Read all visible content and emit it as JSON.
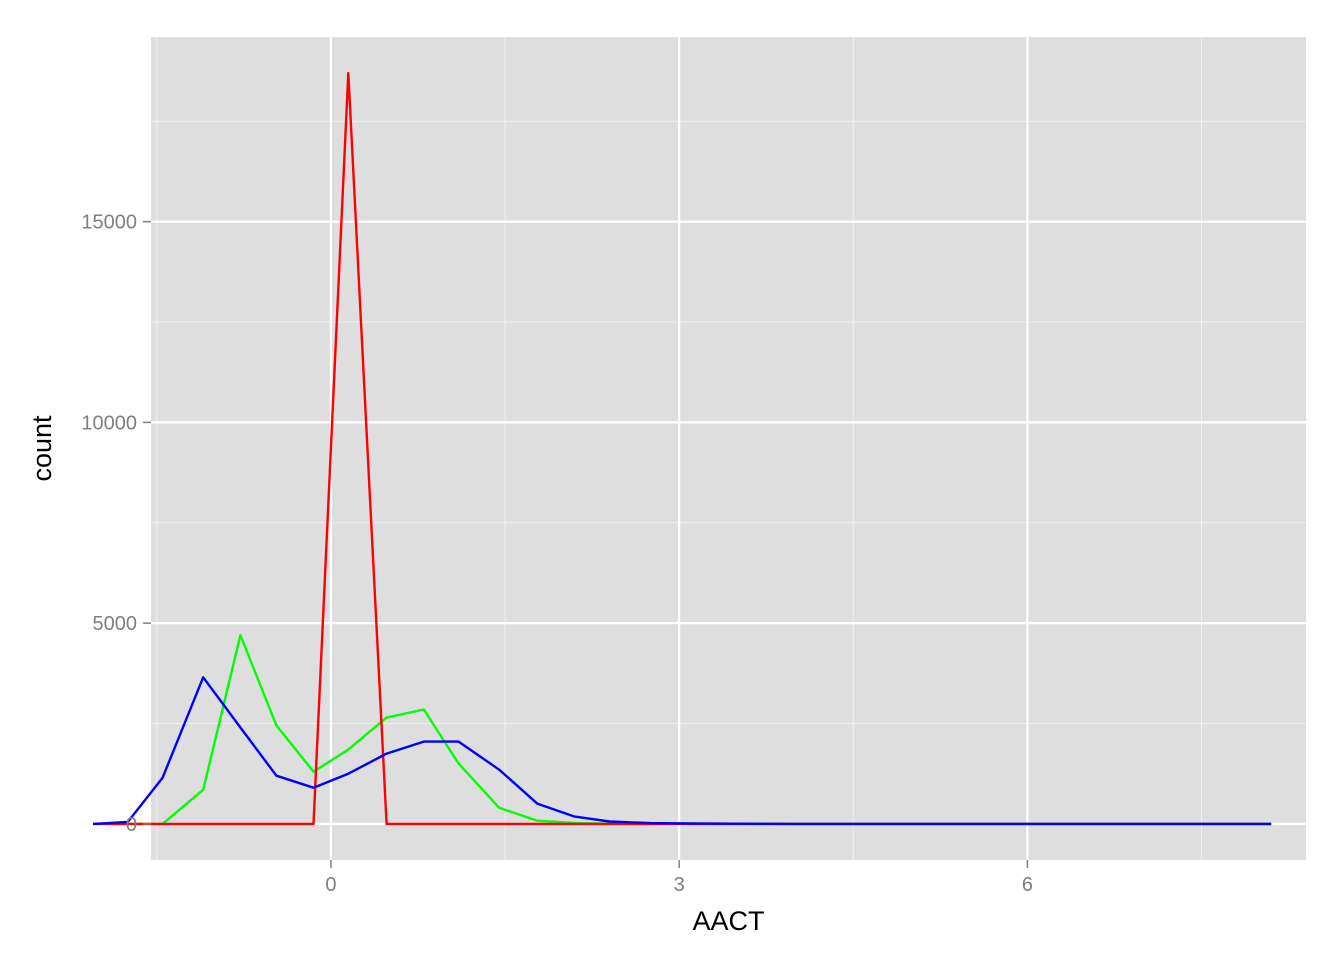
{
  "chart_data": {
    "type": "line",
    "title": "",
    "xlabel": "AACT",
    "ylabel": "count",
    "xlim": [
      -1.55,
      8.4
    ],
    "ylim": [
      -900,
      19600
    ],
    "grid": true,
    "legend": "none",
    "x_ticks": [
      0,
      3,
      6
    ],
    "x_tick_labels": [
      "0",
      "3",
      "6"
    ],
    "x_minor": [
      -1.5,
      1.5,
      4.5,
      7.5
    ],
    "y_ticks": [
      0,
      5000,
      10000,
      15000
    ],
    "y_tick_labels": [
      "0",
      "5000",
      "10000",
      "15000"
    ],
    "y_minor": [
      2500,
      7500,
      12500,
      17500
    ],
    "colors": {
      "panel": "#dedede",
      "grid": "#ffffff",
      "series": [
        "#ff0000",
        "#00ff00",
        "#0000ff"
      ]
    },
    "series": [
      {
        "color": "#ff0000",
        "x": [
          -2.05,
          -1.05,
          -0.15,
          0.15,
          0.48,
          1.0,
          2.0,
          3.0,
          4.0,
          5.0,
          6.0,
          7.0,
          8.1
        ],
        "y": [
          0,
          0,
          0,
          18700,
          0,
          0,
          0,
          0,
          0,
          0,
          0,
          0,
          0
        ]
      },
      {
        "color": "#00ff00",
        "x": [
          -2.05,
          -1.45,
          -1.1,
          -0.78,
          -0.47,
          -0.15,
          0.15,
          0.48,
          0.8,
          1.1,
          1.45,
          1.78,
          2.1,
          2.4,
          2.75,
          3.1,
          4.0,
          5.0,
          6.0,
          7.0,
          8.1
        ],
        "y": [
          0,
          0,
          850,
          4700,
          2450,
          1300,
          1850,
          2650,
          2850,
          1500,
          400,
          80,
          20,
          5,
          0,
          0,
          0,
          0,
          0,
          0,
          0
        ],
        "x_note": ""
      },
      {
        "color": "#0000ff",
        "x": [
          -2.05,
          -1.75,
          -1.45,
          -1.1,
          -0.78,
          -0.47,
          -0.15,
          0.15,
          0.48,
          0.8,
          1.1,
          1.45,
          1.78,
          2.1,
          2.4,
          2.75,
          3.1,
          3.5,
          4.0,
          5.0,
          6.0,
          7.0,
          8.1
        ],
        "y": [
          0,
          50,
          1150,
          3650,
          2400,
          1200,
          900,
          1250,
          1750,
          2050,
          2050,
          1350,
          500,
          180,
          60,
          20,
          10,
          5,
          0,
          0,
          0,
          0,
          0
        ]
      }
    ]
  }
}
